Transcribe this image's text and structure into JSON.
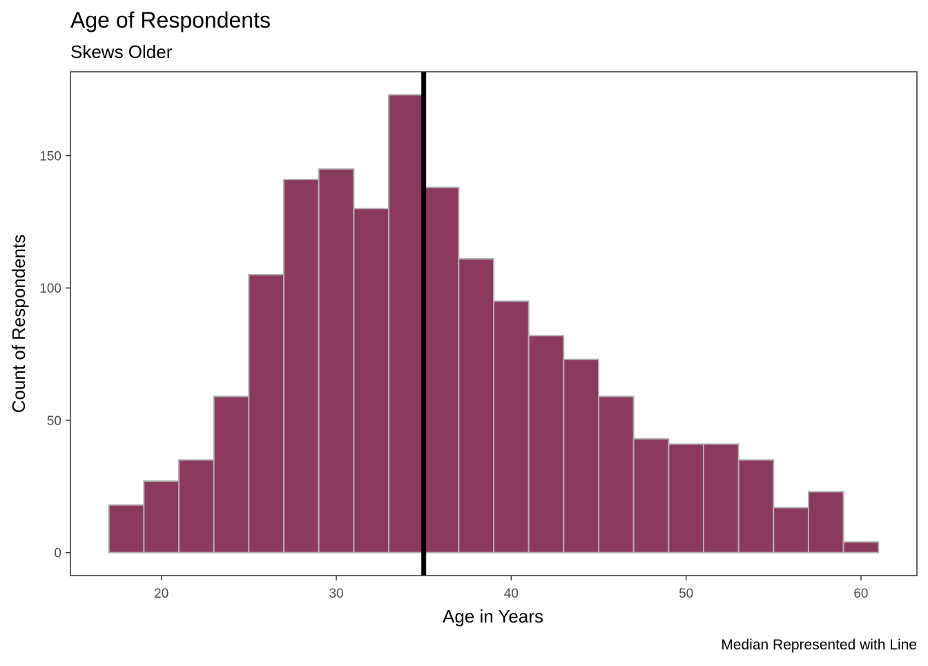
{
  "chart_data": {
    "type": "bar",
    "title": "Age of Respondents",
    "subtitle": "Skews Older",
    "xlabel": "Age in Years",
    "ylabel": "Count of Respondents",
    "caption": "Median Represented with Line",
    "bins": [
      {
        "x0": 17,
        "x1": 19,
        "count": 18
      },
      {
        "x0": 19,
        "x1": 21,
        "count": 27
      },
      {
        "x0": 21,
        "x1": 23,
        "count": 35
      },
      {
        "x0": 23,
        "x1": 25,
        "count": 59
      },
      {
        "x0": 25,
        "x1": 27,
        "count": 105
      },
      {
        "x0": 27,
        "x1": 29,
        "count": 141
      },
      {
        "x0": 29,
        "x1": 31,
        "count": 145
      },
      {
        "x0": 31,
        "x1": 33,
        "count": 130
      },
      {
        "x0": 33,
        "x1": 35,
        "count": 173
      },
      {
        "x0": 35,
        "x1": 37,
        "count": 138
      },
      {
        "x0": 37,
        "x1": 39,
        "count": 111
      },
      {
        "x0": 39,
        "x1": 41,
        "count": 95
      },
      {
        "x0": 41,
        "x1": 43,
        "count": 82
      },
      {
        "x0": 43,
        "x1": 45,
        "count": 73
      },
      {
        "x0": 45,
        "x1": 47,
        "count": 59
      },
      {
        "x0": 47,
        "x1": 49,
        "count": 43
      },
      {
        "x0": 49,
        "x1": 51,
        "count": 41
      },
      {
        "x0": 51,
        "x1": 53,
        "count": 41
      },
      {
        "x0": 53,
        "x1": 55,
        "count": 35
      },
      {
        "x0": 55,
        "x1": 57,
        "count": 17
      },
      {
        "x0": 57,
        "x1": 59,
        "count": 23
      },
      {
        "x0": 59,
        "x1": 61,
        "count": 4
      }
    ],
    "median": 35,
    "xlim": [
      14.8,
      63.2
    ],
    "ylim": [
      -8.7,
      181.7
    ],
    "x_ticks": [
      20,
      30,
      40,
      50,
      60
    ],
    "y_ticks": [
      0,
      50,
      100,
      150
    ],
    "grid": false,
    "colors": {
      "bar_fill": "#8b3a5e",
      "bar_outline": "#b0b0b0",
      "median_line": "#000000",
      "panel_border": "#333333"
    }
  }
}
